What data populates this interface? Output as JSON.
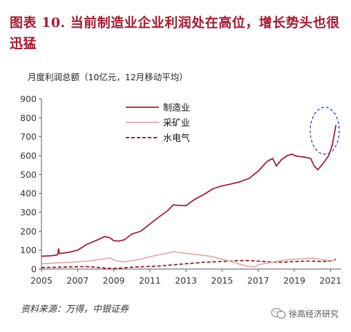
{
  "header": {
    "title": "图表 10.  当前制造业企业利润处在高位，增长势头也很迅猛"
  },
  "footer": {
    "source": "资料来源：万得，中银证券",
    "watermark": "徐高经济研究"
  },
  "chart_data": {
    "type": "line",
    "ylabel": "月度利润总额（10亿元，12月移动平均）",
    "ylim": [
      0,
      900
    ],
    "yticks": [
      0,
      100,
      200,
      300,
      400,
      500,
      600,
      700,
      800,
      900
    ],
    "xlim": [
      2005,
      2021.6
    ],
    "xticks": [
      2005,
      2007,
      2009,
      2011,
      2013,
      2015,
      2017,
      2019,
      2021
    ],
    "grid": false,
    "legend_position": "top-center",
    "series": [
      {
        "name": "制造业",
        "color": "#a6192e",
        "style": "solid",
        "x": [
          2005.0,
          2005.5,
          2005.9,
          2005.95,
          2006.0,
          2006.5,
          2007.0,
          2007.5,
          2008.0,
          2008.5,
          2008.8,
          2009.0,
          2009.3,
          2009.6,
          2010.0,
          2010.5,
          2011.0,
          2011.5,
          2012.0,
          2012.3,
          2012.6,
          2013.0,
          2013.5,
          2014.0,
          2014.5,
          2015.0,
          2015.5,
          2016.0,
          2016.5,
          2017.0,
          2017.5,
          2017.8,
          2018.0,
          2018.3,
          2018.6,
          2018.9,
          2019.0,
          2019.3,
          2019.6,
          2019.9,
          2020.1,
          2020.3,
          2020.6,
          2020.9,
          2021.1,
          2021.3
        ],
        "values": [
          68,
          70,
          75,
          108,
          82,
          88,
          100,
          130,
          150,
          172,
          165,
          150,
          148,
          155,
          185,
          200,
          238,
          275,
          310,
          340,
          337,
          335,
          370,
          395,
          425,
          440,
          450,
          462,
          480,
          518,
          570,
          585,
          545,
          580,
          600,
          608,
          600,
          595,
          592,
          585,
          545,
          525,
          560,
          600,
          655,
          762
        ]
      },
      {
        "name": "采矿业",
        "color": "#e8a2a2",
        "style": "solid",
        "x": [
          2005.0,
          2005.5,
          2006.0,
          2006.5,
          2007.0,
          2007.5,
          2008.0,
          2008.5,
          2008.8,
          2009.0,
          2009.3,
          2009.6,
          2010.0,
          2010.5,
          2011.0,
          2011.5,
          2012.0,
          2012.3,
          2012.6,
          2013.0,
          2013.5,
          2014.0,
          2014.5,
          2015.0,
          2015.5,
          2016.0,
          2016.4,
          2016.8,
          2017.0,
          2017.5,
          2018.0,
          2018.5,
          2019.0,
          2019.5,
          2020.0,
          2020.5,
          2021.0,
          2021.3
        ],
        "values": [
          28,
          30,
          33,
          35,
          38,
          42,
          48,
          55,
          60,
          48,
          40,
          38,
          45,
          52,
          65,
          75,
          85,
          92,
          88,
          82,
          78,
          72,
          65,
          52,
          40,
          25,
          15,
          12,
          22,
          32,
          40,
          48,
          52,
          55,
          58,
          50,
          45,
          48
        ]
      },
      {
        "name": "水电气",
        "color": "#8b0000",
        "style": "dashed",
        "x": [
          2005.0,
          2005.5,
          2006.0,
          2006.5,
          2007.0,
          2007.5,
          2008.0,
          2008.5,
          2008.8,
          2009.0,
          2009.5,
          2010.0,
          2010.5,
          2011.0,
          2011.5,
          2012.0,
          2012.5,
          2013.0,
          2013.5,
          2014.0,
          2014.5,
          2015.0,
          2015.5,
          2016.0,
          2016.5,
          2017.0,
          2017.5,
          2018.0,
          2018.5,
          2019.0,
          2019.5,
          2020.0,
          2020.5,
          2021.0,
          2021.3
        ],
        "values": [
          8,
          9,
          10,
          11,
          12,
          13,
          10,
          5,
          3,
          3,
          6,
          10,
          12,
          14,
          16,
          20,
          24,
          28,
          32,
          36,
          38,
          40,
          42,
          45,
          45,
          42,
          38,
          36,
          37,
          40,
          42,
          42,
          40,
          42,
          52
        ]
      }
    ]
  }
}
